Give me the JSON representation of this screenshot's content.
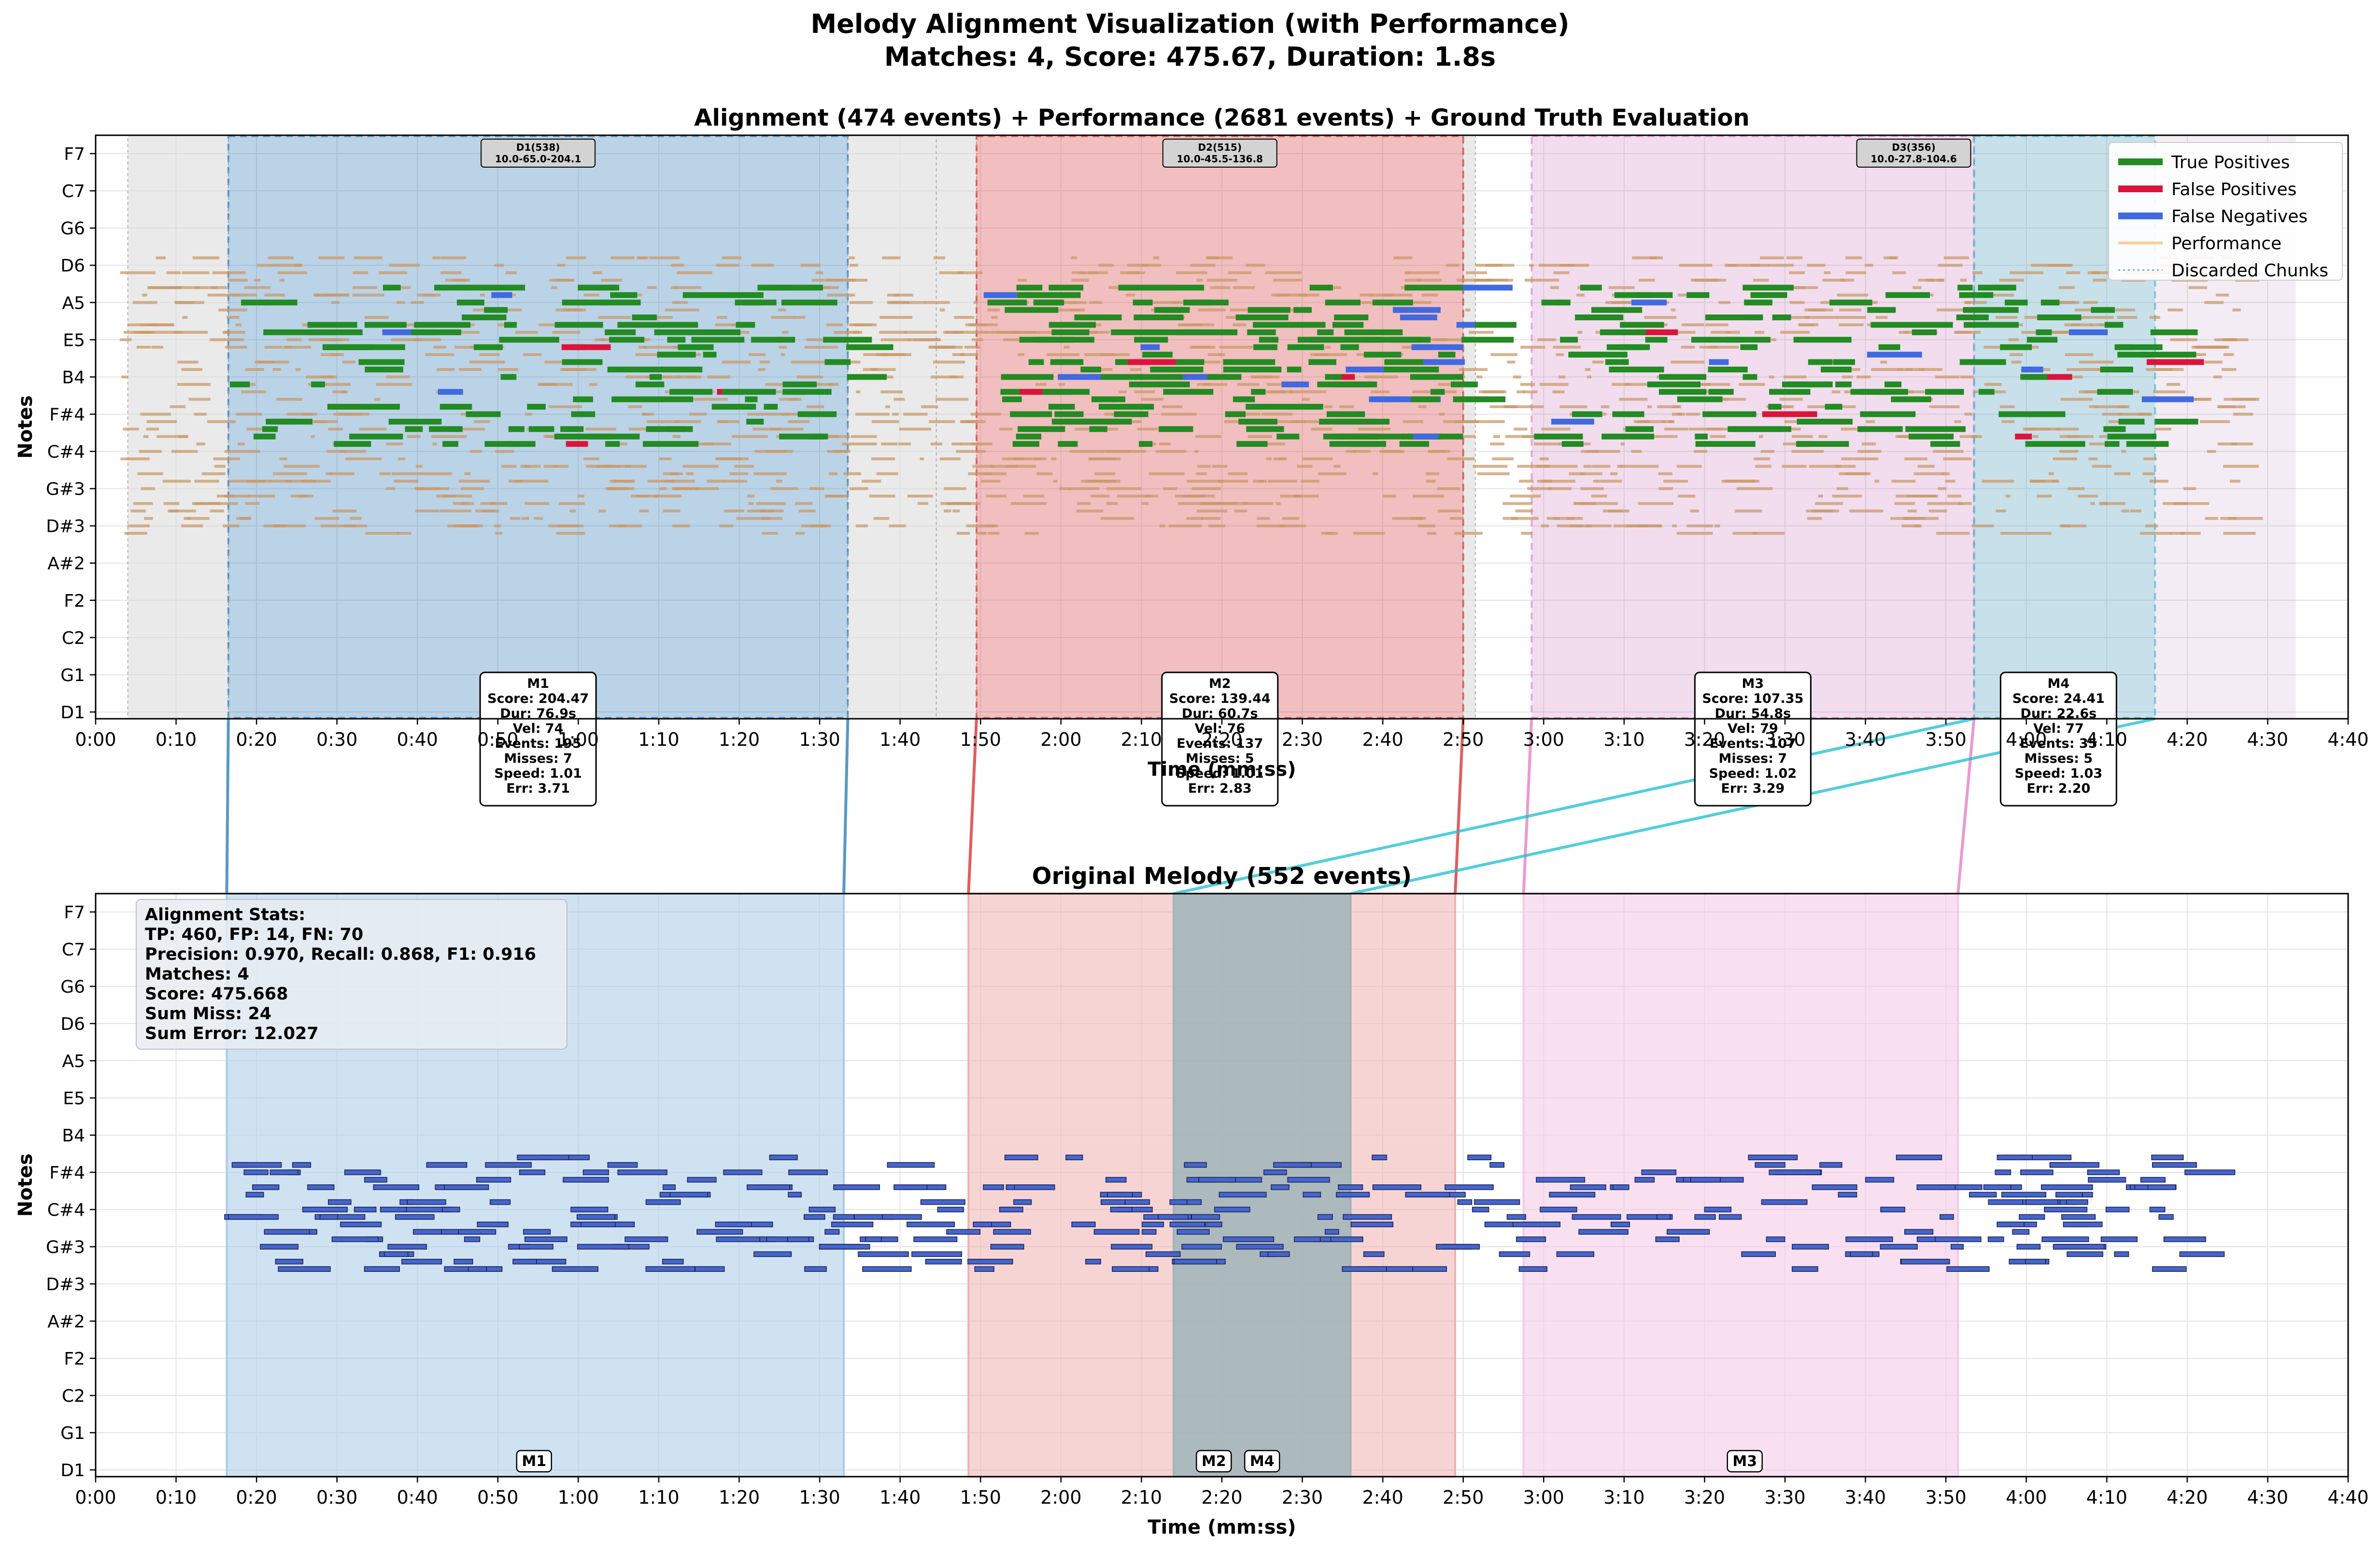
{
  "figure": {
    "title_line1": "Melody Alignment Visualization (with Performance)",
    "title_line2": "Matches: 4, Score: 475.67, Duration: 1.8s"
  },
  "chart_data": [
    {
      "type": "piano-roll",
      "title": "Alignment (474 events) + Performance (2681 events) + Ground Truth Evaluation",
      "xlabel": "Time (mm:ss)",
      "ylabel": "Notes",
      "xlim": [
        0,
        280
      ],
      "x_ticks": [
        "0:00",
        "0:10",
        "0:20",
        "0:30",
        "0:40",
        "0:50",
        "1:00",
        "1:10",
        "1:20",
        "1:30",
        "1:40",
        "1:50",
        "2:00",
        "2:10",
        "2:20",
        "2:30",
        "2:40",
        "2:50",
        "3:00",
        "3:10",
        "3:20",
        "3:30",
        "3:40",
        "3:50",
        "4:00",
        "4:10",
        "4:20",
        "4:30",
        "4:40"
      ],
      "y_ticks": [
        "D1",
        "G1",
        "C2",
        "F2",
        "A#2",
        "D#3",
        "G#3",
        "C#4",
        "F#4",
        "B4",
        "E5",
        "A5",
        "D6",
        "G6",
        "C7",
        "F7"
      ],
      "legend": {
        "placement": "top-right",
        "entries": [
          {
            "label": "True Positives",
            "color": "#228b22"
          },
          {
            "label": "False Positives",
            "color": "#dc143c"
          },
          {
            "label": "False Negatives",
            "color": "#4169e1"
          },
          {
            "label": "Performance",
            "color": "#ffbf80"
          },
          {
            "label": "Discarded Chunks",
            "color": "#7fa8a0"
          }
        ]
      },
      "discarded_chunks": [
        {
          "start": 4,
          "end": 16.5
        },
        {
          "start": 93.5,
          "end": 104.5
        },
        {
          "start": 104.5,
          "end": 109.5
        },
        {
          "start": 170,
          "end": 171.5
        }
      ],
      "detections": [
        {
          "label": "D1(538)",
          "detail": "10.0-65.0-204.1",
          "start": 16.5,
          "end": 93.5,
          "color": "#4a7fb5"
        },
        {
          "label": "D2(515)",
          "detail": "10.0-45.5-136.8",
          "start": 109.5,
          "end": 170,
          "color": "#d15a5a"
        },
        {
          "label": "D3(356)",
          "detail": "10.0-27.8-104.6",
          "start": 178.5,
          "end": 273.5,
          "color": "#b07ab0"
        }
      ],
      "matches": [
        {
          "label": "M1",
          "start": 16.5,
          "end": 93.5,
          "color": "#1f77b4",
          "lines": [
            "M1",
            "Score: 204.47",
            "Dur: 76.9s",
            "Vel: 74",
            "Events: 195",
            "Misses: 7",
            "Speed: 1.01",
            "Err: 3.71"
          ],
          "melody_start": 16.3,
          "melody_end": 93
        },
        {
          "label": "M2",
          "start": 109.5,
          "end": 170,
          "color": "#d62728",
          "lines": [
            "M2",
            "Score: 139.44",
            "Dur: 60.7s",
            "Vel: 76",
            "Events: 137",
            "Misses: 5",
            "Speed: 1.01",
            "Err: 2.83"
          ],
          "melody_start": 108.5,
          "melody_end": 169
        },
        {
          "label": "M3",
          "start": 178.5,
          "end": 233.5,
          "color": "#e377c2",
          "lines": [
            "M3",
            "Score: 107.35",
            "Dur: 54.8s",
            "Vel: 79",
            "Events: 107",
            "Misses: 7",
            "Speed: 1.02",
            "Err: 3.29"
          ],
          "melody_start": 177.5,
          "melody_end": 231.5
        },
        {
          "label": "M4",
          "start": 233.5,
          "end": 256,
          "color": "#17becf",
          "lines": [
            "M4",
            "Score: 24.41",
            "Dur: 22.6s",
            "Vel: 77",
            "Events: 35",
            "Misses: 5",
            "Speed: 1.03",
            "Err: 2.20"
          ],
          "melody_start": 134,
          "melody_end": 156
        }
      ]
    },
    {
      "type": "piano-roll",
      "title": "Original Melody (552 events)",
      "xlabel": "Time (mm:ss)",
      "ylabel": "Notes",
      "xlim": [
        0,
        280
      ],
      "x_ticks": [
        "0:00",
        "0:10",
        "0:20",
        "0:30",
        "0:40",
        "0:50",
        "1:00",
        "1:10",
        "1:20",
        "1:30",
        "1:40",
        "1:50",
        "2:00",
        "2:10",
        "2:20",
        "2:30",
        "2:40",
        "2:50",
        "3:00",
        "3:10",
        "3:20",
        "3:30",
        "3:40",
        "3:50",
        "4:00",
        "4:10",
        "4:20",
        "4:30",
        "4:40"
      ],
      "y_ticks": [
        "D1",
        "G1",
        "C2",
        "F2",
        "A#2",
        "D#3",
        "G#3",
        "C#4",
        "F#4",
        "B4",
        "E5",
        "A5",
        "D6",
        "G6",
        "C7",
        "F7"
      ],
      "regions": [
        {
          "label": "M1",
          "start": 16.3,
          "end": 93,
          "color": "#a8cbe5"
        },
        {
          "label": "M2",
          "start": 108.5,
          "end": 169,
          "color": "#f1b0b0"
        },
        {
          "label": "M4",
          "start": 134,
          "end": 156,
          "color": "#9fb4b8"
        },
        {
          "label": "M3",
          "start": 177.5,
          "end": 231.5,
          "color": "#f4c7e6"
        }
      ],
      "stats_box": {
        "lines": [
          "Alignment Stats:",
          "TP: 460, FP: 14, FN: 70",
          "Precision: 0.970, Recall: 0.868, F1: 0.916",
          "Matches: 4",
          "Score: 475.668",
          "Sum Miss: 24",
          "Sum Error: 12.027"
        ]
      }
    }
  ]
}
